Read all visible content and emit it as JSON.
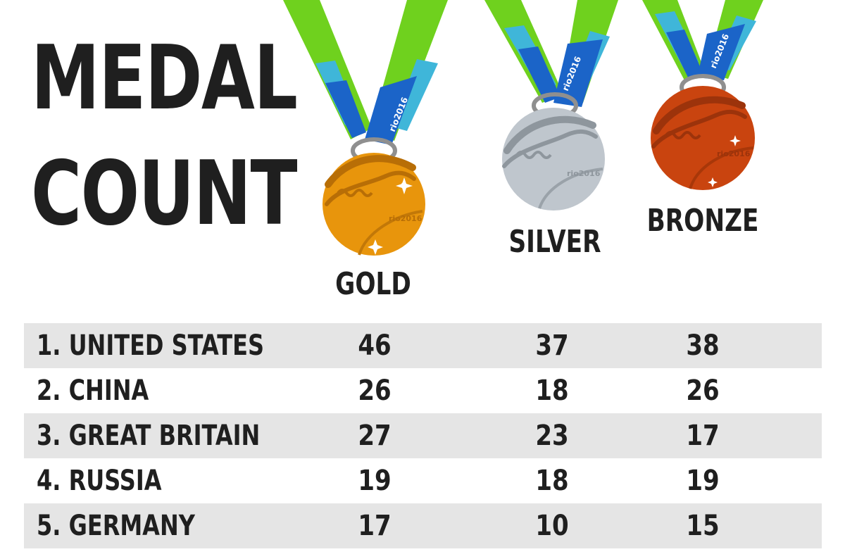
{
  "title": {
    "line1": "MEDAL",
    "line2": "COUNT"
  },
  "medals": [
    {
      "label": "GOLD",
      "ribbon_text": "rio2016",
      "medal_text": "rio2016",
      "color": "#e8950c",
      "shade": "#c27808"
    },
    {
      "label": "SILVER",
      "ribbon_text": "rio2016",
      "medal_text": "rio2016",
      "color": "#bfc6cd",
      "shade": "#8e969d"
    },
    {
      "label": "BRONZE",
      "ribbon_text": "rio2016",
      "medal_text": "rio2016",
      "color": "#c9440f",
      "shade": "#9c330b"
    }
  ],
  "ribbon_colors": {
    "green": "#6fd11e",
    "light_blue": "#3fb6d9",
    "blue": "#1b64c8"
  },
  "chart_data": {
    "type": "table",
    "columns": [
      "",
      "GOLD",
      "SILVER",
      "BRONZE"
    ],
    "rows": [
      {
        "name": "1. UNITED STATES",
        "gold": 46,
        "silver": 37,
        "bronze": 38
      },
      {
        "name": "2. CHINA",
        "gold": 26,
        "silver": 18,
        "bronze": 26
      },
      {
        "name": "3. GREAT BRITAIN",
        "gold": 27,
        "silver": 23,
        "bronze": 17
      },
      {
        "name": "4. RUSSIA",
        "gold": 19,
        "silver": 18,
        "bronze": 19
      },
      {
        "name": "5. GERMANY",
        "gold": 17,
        "silver": 10,
        "bronze": 15
      }
    ]
  }
}
